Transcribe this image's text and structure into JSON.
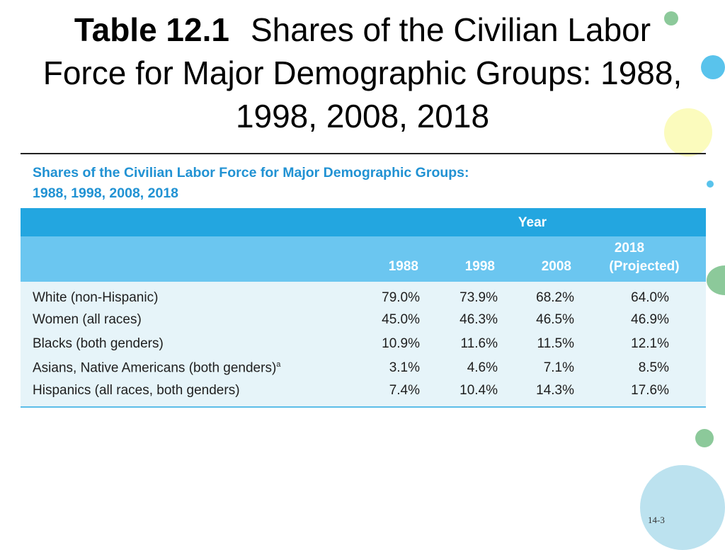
{
  "slide": {
    "title_label": "Table 12.1",
    "title_text": "Shares of the Civilian Labor Force for Major Demographic Groups: 1988, 1998, 2008, 2018",
    "page_number": "14-3"
  },
  "table": {
    "title_line1": "Shares of the Civilian Labor Force for Major Demographic Groups:",
    "title_line2": "1988, 1998, 2008, 2018",
    "year_header": "Year",
    "columns": [
      "1988",
      "1998",
      "2008",
      "2018",
      "(Projected)"
    ],
    "rows": [
      {
        "label": "White (non-Hispanic)",
        "sup": "",
        "values": [
          "79.0%",
          "73.9%",
          "68.2%",
          "64.0%"
        ]
      },
      {
        "label": "Women (all races)",
        "sup": "",
        "values": [
          "45.0%",
          "46.3%",
          "46.5%",
          "46.9%"
        ]
      },
      {
        "label": "Blacks (both genders)",
        "sup": "",
        "values": [
          "10.9%",
          "11.6%",
          "11.5%",
          "12.1%"
        ]
      },
      {
        "label": "Asians, Native Americans (both genders)",
        "sup": "a",
        "values": [
          "3.1%",
          "4.6%",
          "7.1%",
          "8.5%"
        ]
      },
      {
        "label": "Hispanics (all races, both genders)",
        "sup": "",
        "values": [
          "7.4%",
          "10.4%",
          "14.3%",
          "17.6%"
        ]
      }
    ]
  },
  "colors": {
    "table_title": "#2192d3",
    "year_band": "#23a6e0",
    "header_band": "#6bc6f0",
    "body_band": "#e6f4f9"
  }
}
